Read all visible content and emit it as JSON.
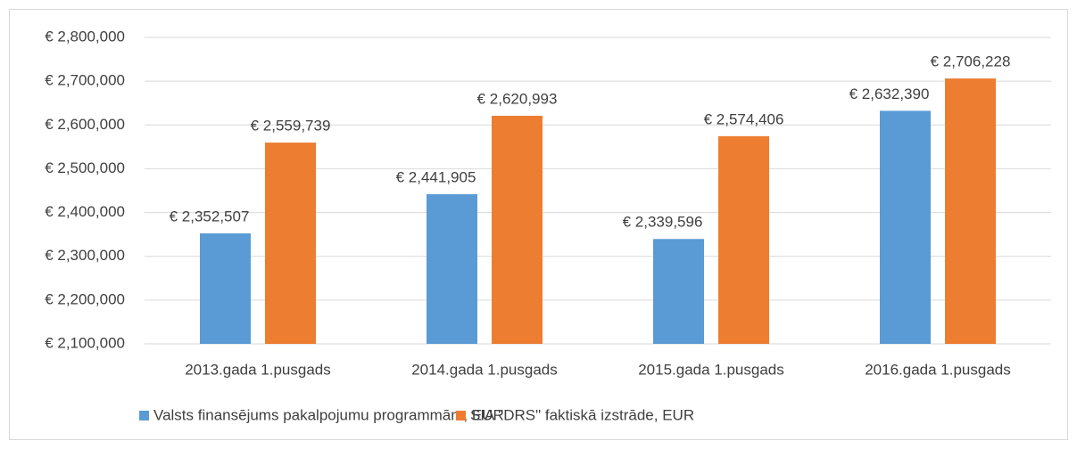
{
  "chart_data": {
    "type": "bar",
    "categories": [
      "2013.gada 1.pusgads",
      "2014.gada 1.pusgads",
      "2015.gada 1.pusgads",
      "2016.gada 1.pusgads"
    ],
    "series": [
      {
        "name": "Valsts finansējums pakalpojumu programmām, EUR",
        "color": "#5b9bd5",
        "values": [
          2352507,
          2441905,
          2339596,
          2632390
        ],
        "value_labels": [
          "€ 2,352,507",
          "€ 2,441,905",
          "€ 2,339,596",
          "€ 2,632,390"
        ]
      },
      {
        "name": "SIA \"DRS\" faktiskā izstrāde, EUR",
        "color": "#ed7d31",
        "values": [
          2559739,
          2620993,
          2574406,
          2706228
        ],
        "value_labels": [
          "€ 2,559,739",
          "€ 2,620,993",
          "€ 2,574,406",
          "€ 2,706,228"
        ]
      }
    ],
    "ylim": [
      2100000,
      2800000
    ],
    "yticks": [
      {
        "value": 2100000,
        "label": "€ 2,100,000"
      },
      {
        "value": 2200000,
        "label": "€ 2,200,000"
      },
      {
        "value": 2300000,
        "label": "€ 2,300,000"
      },
      {
        "value": 2400000,
        "label": "€ 2,400,000"
      },
      {
        "value": 2500000,
        "label": "€ 2,500,000"
      },
      {
        "value": 2600000,
        "label": "€ 2,600,000"
      },
      {
        "value": 2700000,
        "label": "€ 2,700,000"
      },
      {
        "value": 2800000,
        "label": "€ 2,800,000"
      }
    ],
    "grid": true,
    "legend": "bottom"
  }
}
